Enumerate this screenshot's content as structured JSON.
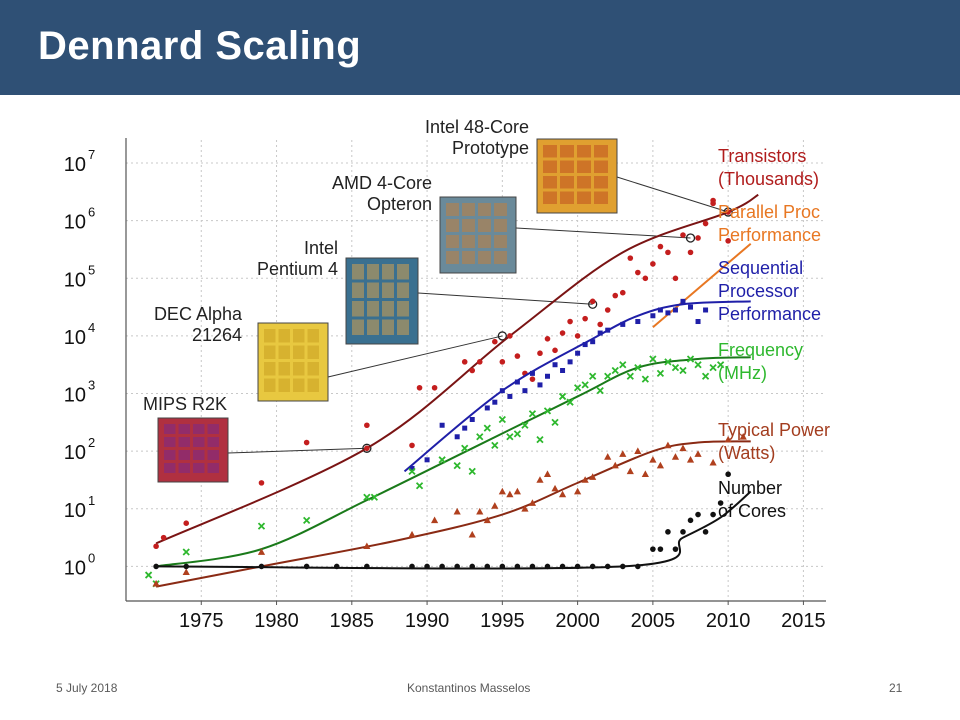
{
  "slide": {
    "title": "Dennard Scaling",
    "footer_date": "5 July 2018",
    "footer_author": "Konstantinos Masselos",
    "footer_page": "21"
  },
  "chart_data": {
    "type": "scatter",
    "title": "",
    "xlabel": "",
    "ylabel": "",
    "x_ticks": [
      1975,
      1980,
      1985,
      1990,
      1995,
      2000,
      2005,
      2010,
      2015
    ],
    "y_scale": "log",
    "y_ticks": [
      {
        "base": "10",
        "exp": "0"
      },
      {
        "base": "10",
        "exp": "1"
      },
      {
        "base": "10",
        "exp": "2"
      },
      {
        "base": "10",
        "exp": "3"
      },
      {
        "base": "10",
        "exp": "4"
      },
      {
        "base": "10",
        "exp": "5"
      },
      {
        "base": "10",
        "exp": "6"
      },
      {
        "base": "10",
        "exp": "7"
      }
    ],
    "xlim": [
      1970,
      2016.5
    ],
    "ylim_log10": [
      -0.6,
      7.4
    ],
    "grid": true,
    "series": [
      {
        "name": "Transistors (Thousands)",
        "color": "#b01c1c",
        "marker": "circle",
        "label_lines": [
          "Transistors",
          "(Thousands)"
        ],
        "trend": [
          [
            1972,
            0.4
          ],
          [
            1986,
            2.05
          ],
          [
            1995.5,
            4.0
          ],
          [
            2003,
            5.45
          ],
          [
            2010,
            6.15
          ],
          [
            2012,
            6.45
          ]
        ],
        "points": [
          [
            1972,
            0.35
          ],
          [
            1972.5,
            0.5
          ],
          [
            1974,
            0.75
          ],
          [
            1979,
            1.45
          ],
          [
            1982,
            2.15
          ],
          [
            1986,
            2.45
          ],
          [
            1986,
            2.05
          ],
          [
            1989,
            2.1
          ],
          [
            1989.5,
            3.1
          ],
          [
            1990.5,
            3.1
          ],
          [
            1992.5,
            3.55
          ],
          [
            1993,
            3.4
          ],
          [
            1993.5,
            3.55
          ],
          [
            1994.5,
            3.9
          ],
          [
            1995,
            3.55
          ],
          [
            1995.5,
            4.0
          ],
          [
            1996,
            3.65
          ],
          [
            1996.5,
            3.35
          ],
          [
            1997,
            3.25
          ],
          [
            1997.5,
            3.7
          ],
          [
            1998,
            3.95
          ],
          [
            1998.5,
            3.75
          ],
          [
            1999,
            4.05
          ],
          [
            1999.5,
            4.25
          ],
          [
            2000,
            4.0
          ],
          [
            2000.5,
            4.3
          ],
          [
            2001,
            4.6
          ],
          [
            2001.5,
            4.2
          ],
          [
            2002,
            4.45
          ],
          [
            2002.5,
            4.7
          ],
          [
            2003,
            4.75
          ],
          [
            2003.5,
            5.35
          ],
          [
            2004,
            5.1
          ],
          [
            2004.5,
            5.0
          ],
          [
            2005,
            5.25
          ],
          [
            2005.5,
            5.55
          ],
          [
            2006,
            5.45
          ],
          [
            2006.5,
            5.0
          ],
          [
            2007,
            5.75
          ],
          [
            2007.5,
            5.45
          ],
          [
            2008,
            5.7
          ],
          [
            2008.5,
            5.95
          ],
          [
            2009,
            6.3
          ],
          [
            2009,
            6.35
          ],
          [
            2010,
            6.15
          ],
          [
            2010,
            5.65
          ]
        ]
      },
      {
        "name": "Parallel Proc Performance",
        "color": "#e87722",
        "marker": "none",
        "label_lines": [
          "Parallel Proc",
          "Performance"
        ],
        "trend": [
          [
            2005,
            4.15
          ],
          [
            2011.5,
            5.6
          ]
        ],
        "points": []
      },
      {
        "name": "Sequential Processor Performance",
        "color": "#1f1fa8",
        "marker": "square",
        "label_lines": [
          "Sequential",
          "Processor",
          "Performance"
        ],
        "trend": [
          [
            1988.5,
            1.65
          ],
          [
            1995,
            3.05
          ],
          [
            2001,
            3.95
          ],
          [
            2004,
            4.35
          ],
          [
            2007,
            4.55
          ],
          [
            2011.5,
            4.6
          ]
        ],
        "points": [
          [
            1989,
            1.7
          ],
          [
            1990,
            1.85
          ],
          [
            1991,
            2.45
          ],
          [
            1992,
            2.25
          ],
          [
            1992.5,
            2.4
          ],
          [
            1993,
            2.55
          ],
          [
            1994,
            2.75
          ],
          [
            1994.5,
            2.85
          ],
          [
            1995,
            3.05
          ],
          [
            1995.5,
            2.95
          ],
          [
            1996,
            3.2
          ],
          [
            1996.5,
            3.05
          ],
          [
            1997,
            3.35
          ],
          [
            1997.5,
            3.15
          ],
          [
            1998,
            3.3
          ],
          [
            1998.5,
            3.5
          ],
          [
            1999,
            3.4
          ],
          [
            1999.5,
            3.55
          ],
          [
            2000,
            3.7
          ],
          [
            2000.5,
            3.85
          ],
          [
            2001,
            3.9
          ],
          [
            2001.5,
            4.05
          ],
          [
            2002,
            4.1
          ],
          [
            2003,
            4.2
          ],
          [
            2004,
            4.25
          ],
          [
            2005,
            4.35
          ],
          [
            2005.5,
            4.45
          ],
          [
            2006,
            4.4
          ],
          [
            2006.5,
            4.45
          ],
          [
            2007,
            4.6
          ],
          [
            2007.5,
            4.5
          ],
          [
            2008,
            4.25
          ],
          [
            2008.5,
            4.45
          ]
        ]
      },
      {
        "name": "Frequency (MHz)",
        "color": "#2eb82e",
        "marker": "x",
        "label_lines": [
          "Frequency",
          "(MHz)"
        ],
        "trend": [
          [
            1972,
            0.0
          ],
          [
            1979,
            0.3
          ],
          [
            1986,
            1.15
          ],
          [
            1993,
            2.05
          ],
          [
            2000,
            2.95
          ],
          [
            2004,
            3.45
          ],
          [
            2008,
            3.6
          ],
          [
            2011.5,
            3.63
          ]
        ],
        "points": [
          [
            1971.5,
            -0.15
          ],
          [
            1972,
            -0.3
          ],
          [
            1974,
            0.25
          ],
          [
            1979,
            0.7
          ],
          [
            1982,
            0.8
          ],
          [
            1986,
            1.2
          ],
          [
            1986.5,
            1.2
          ],
          [
            1989,
            1.65
          ],
          [
            1989.5,
            1.4
          ],
          [
            1991,
            1.85
          ],
          [
            1992,
            1.75
          ],
          [
            1992.5,
            2.05
          ],
          [
            1993,
            1.65
          ],
          [
            1993.5,
            2.25
          ],
          [
            1994,
            2.4
          ],
          [
            1994.5,
            2.1
          ],
          [
            1995,
            2.55
          ],
          [
            1995.5,
            2.25
          ],
          [
            1996,
            2.3
          ],
          [
            1996.5,
            2.45
          ],
          [
            1997,
            2.65
          ],
          [
            1997.5,
            2.2
          ],
          [
            1998,
            2.7
          ],
          [
            1998.5,
            2.5
          ],
          [
            1999,
            2.95
          ],
          [
            1999.5,
            2.85
          ],
          [
            2000,
            3.1
          ],
          [
            2000.5,
            3.15
          ],
          [
            2001,
            3.3
          ],
          [
            2001.5,
            3.05
          ],
          [
            2002,
            3.3
          ],
          [
            2002.5,
            3.4
          ],
          [
            2003,
            3.5
          ],
          [
            2003.5,
            3.3
          ],
          [
            2004,
            3.45
          ],
          [
            2004.5,
            3.25
          ],
          [
            2005,
            3.6
          ],
          [
            2005.5,
            3.35
          ],
          [
            2006,
            3.55
          ],
          [
            2006.5,
            3.45
          ],
          [
            2007,
            3.4
          ],
          [
            2007.5,
            3.6
          ],
          [
            2008,
            3.5
          ],
          [
            2008.5,
            3.3
          ],
          [
            2009,
            3.45
          ],
          [
            2009.5,
            3.5
          ]
        ]
      },
      {
        "name": "Typical Power (Watts)",
        "color": "#a33d1f",
        "marker": "triangle",
        "label_lines": [
          "Typical Power",
          "(Watts)"
        ],
        "trend": [
          [
            1972,
            -0.35
          ],
          [
            1979,
            0.0
          ],
          [
            1988,
            0.45
          ],
          [
            1995,
            0.9
          ],
          [
            2000,
            1.45
          ],
          [
            2005,
            2.0
          ],
          [
            2008,
            2.15
          ],
          [
            2011.5,
            2.17
          ]
        ],
        "points": [
          [
            1972,
            -0.3
          ],
          [
            1974,
            -0.1
          ],
          [
            1979,
            0.25
          ],
          [
            1986,
            0.35
          ],
          [
            1989,
            0.55
          ],
          [
            1990.5,
            0.8
          ],
          [
            1992,
            0.95
          ],
          [
            1993,
            0.55
          ],
          [
            1993.5,
            0.95
          ],
          [
            1994,
            0.8
          ],
          [
            1994.5,
            1.05
          ],
          [
            1995,
            1.3
          ],
          [
            1995.5,
            1.25
          ],
          [
            1996,
            1.3
          ],
          [
            1996.5,
            1.0
          ],
          [
            1997,
            1.1
          ],
          [
            1997.5,
            1.5
          ],
          [
            1998,
            1.6
          ],
          [
            1998.5,
            1.35
          ],
          [
            1999,
            1.25
          ],
          [
            2000,
            1.3
          ],
          [
            2000.5,
            1.5
          ],
          [
            2001,
            1.55
          ],
          [
            2002,
            1.9
          ],
          [
            2002.5,
            1.75
          ],
          [
            2003,
            1.95
          ],
          [
            2003.5,
            1.65
          ],
          [
            2004,
            2.0
          ],
          [
            2004.5,
            1.6
          ],
          [
            2005,
            1.85
          ],
          [
            2005.5,
            1.75
          ],
          [
            2006,
            2.1
          ],
          [
            2006.5,
            1.9
          ],
          [
            2007,
            2.05
          ],
          [
            2007.5,
            1.85
          ],
          [
            2008,
            1.95
          ],
          [
            2009,
            1.8
          ],
          [
            2010,
            2.2
          ],
          [
            2011,
            2.25
          ]
        ]
      },
      {
        "name": "Number of Cores",
        "color": "#111111",
        "marker": "circle",
        "label_lines": [
          "Number",
          "of Cores"
        ],
        "trend": [
          [
            1972,
            0.0
          ],
          [
            2003,
            0.0
          ],
          [
            2007,
            0.5
          ],
          [
            2009.5,
            0.85
          ],
          [
            2011.5,
            1.3
          ]
        ],
        "points": [
          [
            1972,
            0.0
          ],
          [
            1974,
            0.0
          ],
          [
            1979,
            0.0
          ],
          [
            1982,
            0.0
          ],
          [
            1984,
            0.0
          ],
          [
            1986,
            0.0
          ],
          [
            1989,
            0.0
          ],
          [
            1990,
            0.0
          ],
          [
            1991,
            0.0
          ],
          [
            1992,
            0.0
          ],
          [
            1993,
            0.0
          ],
          [
            1994,
            0.0
          ],
          [
            1995,
            0.0
          ],
          [
            1996,
            0.0
          ],
          [
            1997,
            0.0
          ],
          [
            1998,
            0.0
          ],
          [
            1999,
            0.0
          ],
          [
            2000,
            0.0
          ],
          [
            2001,
            0.0
          ],
          [
            2002,
            0.0
          ],
          [
            2003,
            0.0
          ],
          [
            2004,
            0.0
          ],
          [
            2005,
            0.3
          ],
          [
            2005.5,
            0.3
          ],
          [
            2006,
            0.6
          ],
          [
            2006.5,
            0.3
          ],
          [
            2007,
            0.6
          ],
          [
            2007.5,
            0.8
          ],
          [
            2008,
            0.9
          ],
          [
            2008.5,
            0.6
          ],
          [
            2009,
            0.9
          ],
          [
            2009.5,
            1.1
          ],
          [
            2010,
            1.6
          ]
        ]
      }
    ],
    "annotations": [
      {
        "label_lines": [
          "MIPS R2K"
        ],
        "point": [
          1986,
          2.05
        ],
        "chip_color": "#b03040",
        "chip_pattern": "#7a2a8a"
      },
      {
        "label_lines": [
          "DEC Alpha",
          "21264"
        ],
        "point": [
          1995,
          4.0
        ],
        "chip_color": "#e8c840",
        "chip_pattern": "#c8a020"
      },
      {
        "label_lines": [
          "Intel",
          "Pentium 4"
        ],
        "point": [
          2001,
          4.55
        ],
        "chip_color": "#3a7090",
        "chip_pattern": "#d0a050"
      },
      {
        "label_lines": [
          "AMD 4-Core",
          "Opteron"
        ],
        "point": [
          2007.5,
          5.7
        ],
        "chip_color": "#6a8a9a",
        "chip_pattern": "#c08040"
      },
      {
        "label_lines": [
          "Intel 48-Core",
          "Prototype"
        ],
        "point": [
          2010,
          6.15
        ],
        "chip_color": "#e0a030",
        "chip_pattern": "#c05020"
      }
    ]
  }
}
